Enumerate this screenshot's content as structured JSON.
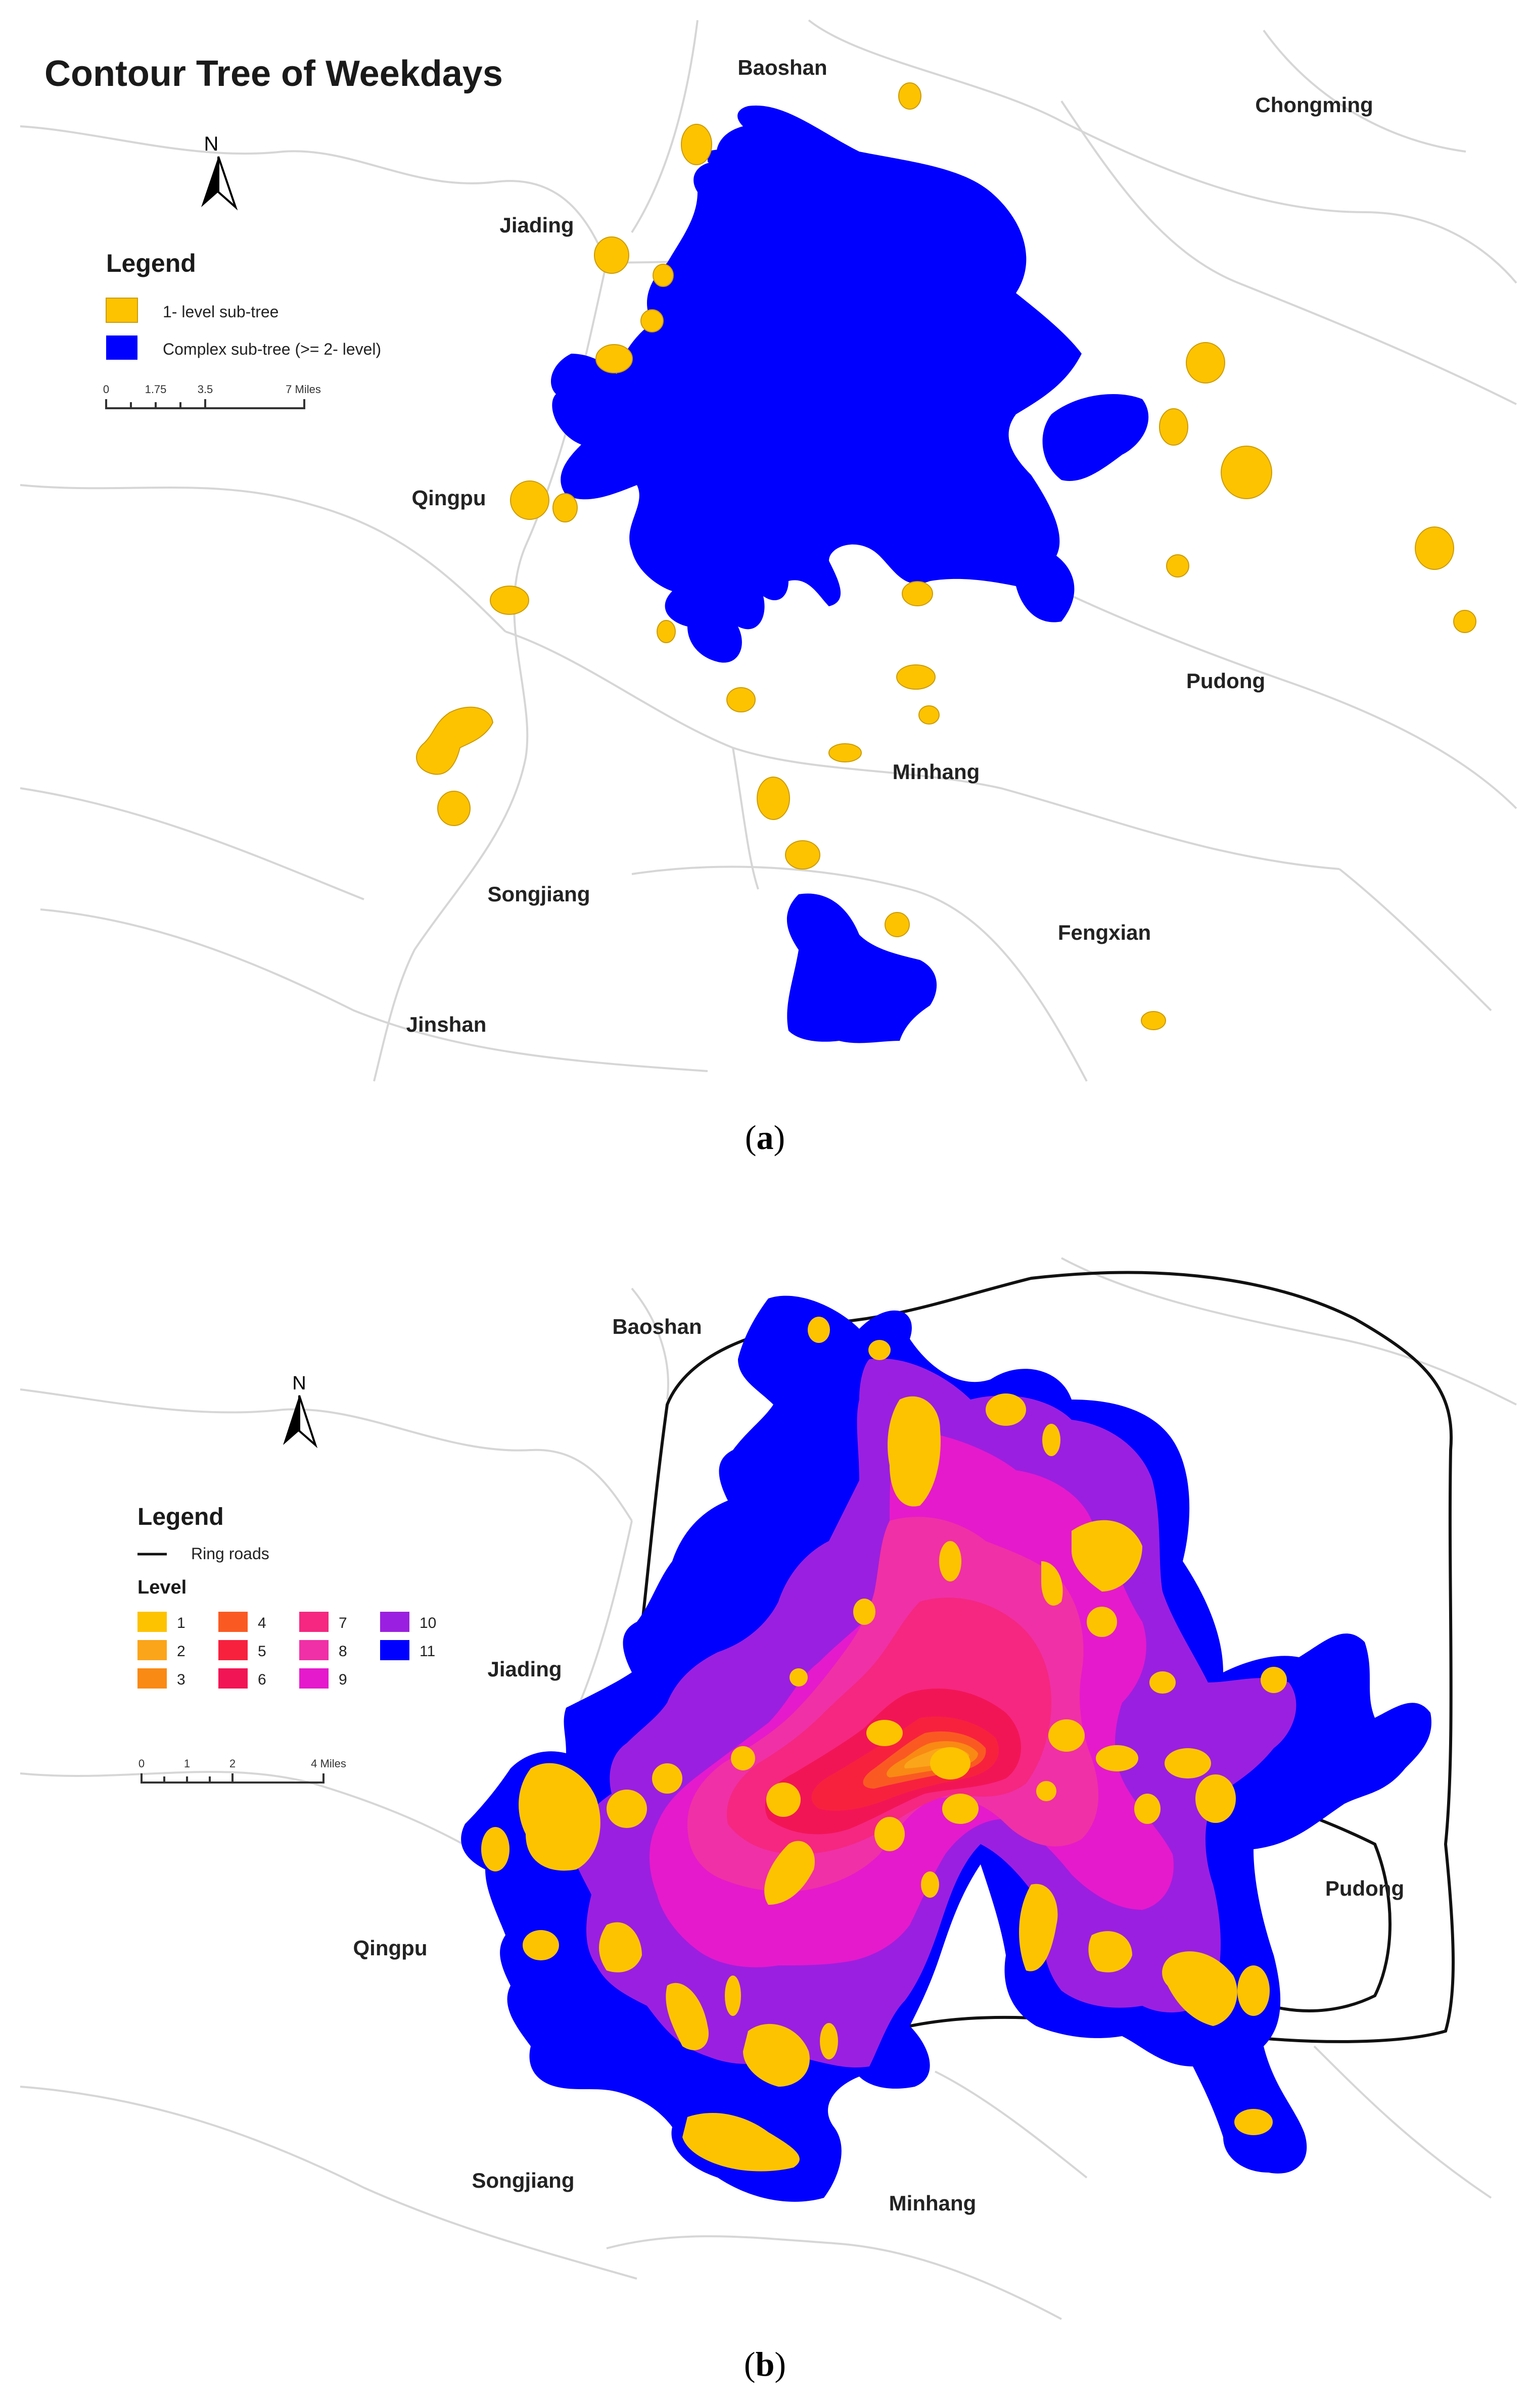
{
  "panel_a": {
    "title": "Contour Tree of Weekdays",
    "north_label": "N",
    "legend": {
      "title": "Legend",
      "items": [
        {
          "label": "1- level sub-tree",
          "color": "#FDC300"
        },
        {
          "label": "Complex sub-tree (>= 2- level)",
          "color": "#0000FF"
        }
      ]
    },
    "scale_bar": {
      "ticks": [
        "0",
        "1.75",
        "3.5",
        "7 Miles"
      ]
    },
    "districts": [
      "Baoshan",
      "Chongming",
      "Jiading",
      "Qingpu",
      "Pudong",
      "Minhang",
      "Songjiang",
      "Fengxian",
      "Jinshan"
    ],
    "caption": "a"
  },
  "panel_b": {
    "north_label": "N",
    "legend": {
      "title": "Legend",
      "ring_roads_label": "Ring roads",
      "level_title": "Level",
      "levels": [
        {
          "label": "1",
          "color": "#FDC300"
        },
        {
          "label": "2",
          "color": "#FBA51A"
        },
        {
          "label": "3",
          "color": "#F98A14"
        },
        {
          "label": "4",
          "color": "#FA5A22"
        },
        {
          "label": "5",
          "color": "#F7213E"
        },
        {
          "label": "6",
          "color": "#F21556"
        },
        {
          "label": "7",
          "color": "#F52780"
        },
        {
          "label": "8",
          "color": "#F030A6"
        },
        {
          "label": "9",
          "color": "#E51ACC"
        },
        {
          "label": "10",
          "color": "#9B1FE0"
        },
        {
          "label": "11",
          "color": "#0000FF"
        }
      ]
    },
    "scale_bar": {
      "ticks": [
        "0",
        "1",
        "2",
        "4 Miles"
      ]
    },
    "districts": [
      "Baoshan",
      "Jiading",
      "Qingpu",
      "Pudong",
      "Songjiang",
      "Minhang"
    ],
    "caption": "b"
  }
}
